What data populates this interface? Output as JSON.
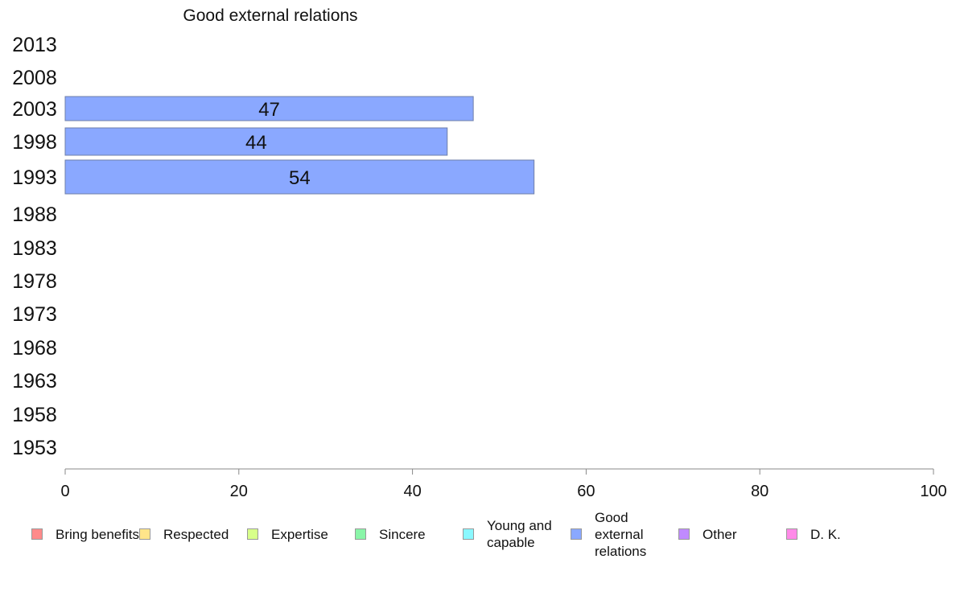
{
  "chart_data": {
    "type": "bar",
    "orientation": "horizontal",
    "title": "Good external relations",
    "categories": [
      "2013",
      "2008",
      "2003",
      "1998",
      "1993",
      "1988",
      "1983",
      "1978",
      "1973",
      "1968",
      "1963",
      "1958",
      "1953"
    ],
    "values": [
      null,
      null,
      47,
      44,
      54,
      null,
      null,
      null,
      null,
      null,
      null,
      null,
      null
    ],
    "data_labels": [
      "",
      "",
      "47",
      "44",
      "54",
      "",
      "",
      "",
      "",
      "",
      "",
      "",
      ""
    ],
    "xlim": [
      0,
      100
    ],
    "xticks": [
      "0",
      "20",
      "40",
      "60",
      "80",
      "100"
    ],
    "grid": false,
    "legend_position": "bottom",
    "legend": [
      {
        "label": "Bring benefits",
        "color": "#ff8a8a"
      },
      {
        "label": "Respected",
        "color": "#ffe58a"
      },
      {
        "label": "Expertise",
        "color": "#d8ff8a"
      },
      {
        "label": "Sincere",
        "color": "#8af5a8"
      },
      {
        "label": "Young and capable",
        "color": "#8af8ff"
      },
      {
        "label": "Good external relations",
        "color": "#8aa8ff"
      },
      {
        "label": "Other",
        "color": "#c08aff"
      },
      {
        "label": "D. K.",
        "color": "#ff8ae8"
      }
    ],
    "bar_color": "#8aa8ff"
  }
}
